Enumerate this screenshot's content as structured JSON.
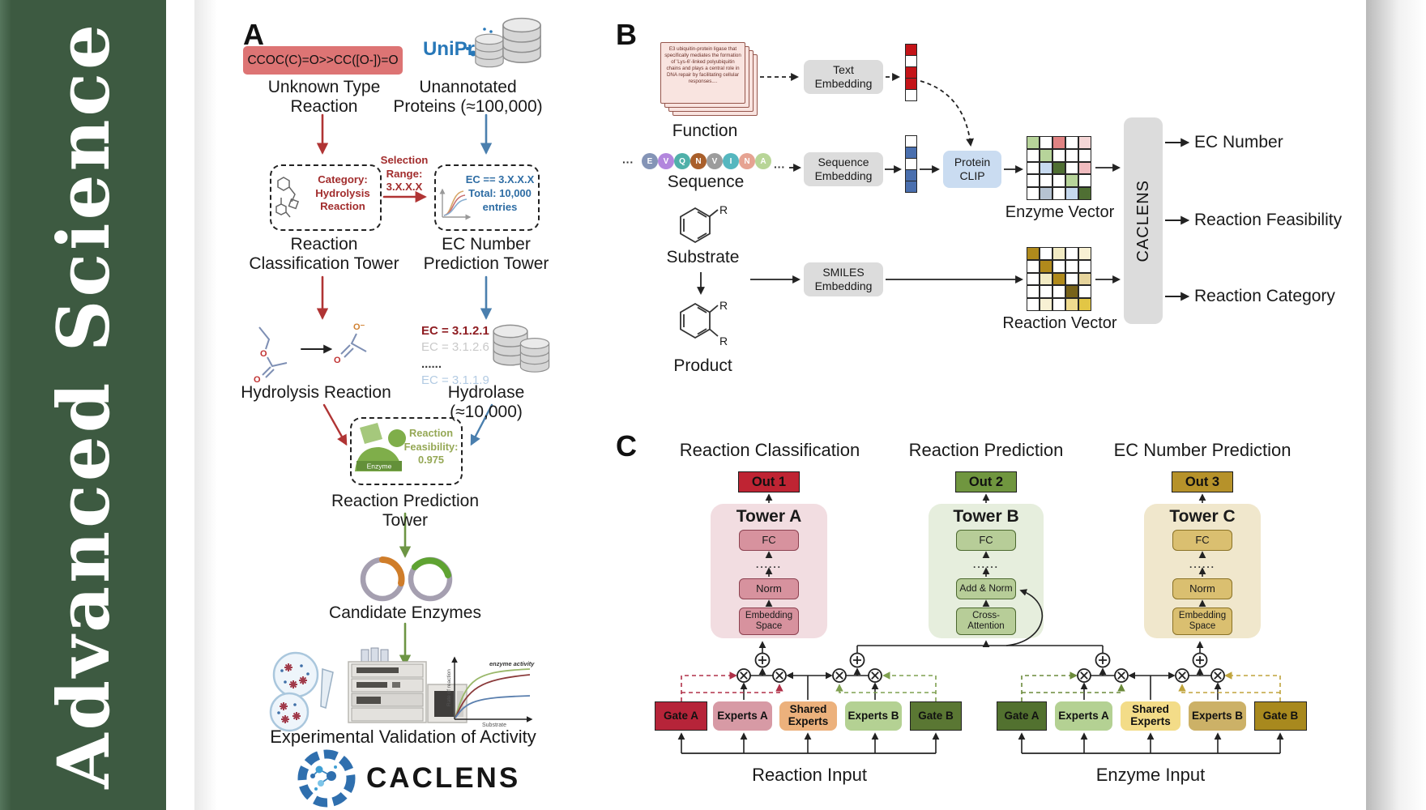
{
  "sidebar": {
    "journal": "Advanced Science"
  },
  "panelA": {
    "label": "A",
    "smiles": "CCOC(C)=O>>CC([O-])=O",
    "unknown_reaction": "Unknown Type Reaction",
    "uniprot": "UniProt",
    "unannotated": "Unannotated Proteins (≈100,000)",
    "category_box": "Category: Hydrolysis Reaction",
    "selection": "Selection Range: 3.X.X.X",
    "ec_box": {
      "line1": "EC == 3.X.X.X",
      "line2": "Total: 10,000",
      "line3": "entries"
    },
    "tower_classification": "Reaction Classification Tower",
    "tower_ec": "EC Number Prediction Tower",
    "ec_list": [
      {
        "text": "EC = 3.1.2.1",
        "color": "#8f1d22",
        "weight": "bold"
      },
      {
        "text": "EC = 3.1.2.6",
        "color": "#c9c9c9",
        "weight": "normal"
      },
      {
        "text": "......",
        "color": "#3a3a3a",
        "weight": "bold"
      },
      {
        "text": "EC = 3.1.1.9",
        "color": "#b3cbe3",
        "weight": "normal"
      }
    ],
    "hydrolysis": "Hydrolysis Reaction",
    "hydrolase": "Hydrolase (≈10,000)",
    "enzyme_icon_label": "Enzyme",
    "feasibility": "Reaction Feasibility: 0.975",
    "tower_prediction": "Reaction Prediction Tower",
    "candidate": "Candidate Enzymes",
    "molecule": {
      "o": "O",
      "o_minus": "O⁻"
    },
    "activity_plot": {
      "annotation": "enzyme activity",
      "ylabel": "Rate of reaction",
      "xlabel": "Substrate"
    },
    "validation": "Experimental Validation of Activity",
    "brand": "CACLENS"
  },
  "panelB": {
    "label": "B",
    "function_card": "E3 ubiquitin-protein ligase that specifically mediates the formation of 'Lys-6'-linked polyubiquitin chains and plays a central role in DNA repair by facilitating cellular responses....",
    "function": "Function",
    "sequence_residues": [
      {
        "letter": "E",
        "color": "#8494b6"
      },
      {
        "letter": "V",
        "color": "#b286dd"
      },
      {
        "letter": "Q",
        "color": "#4fb0a9"
      },
      {
        "letter": "N",
        "color": "#a95f2b"
      },
      {
        "letter": "V",
        "color": "#9c9c9c"
      },
      {
        "letter": "I",
        "color": "#55b7bf"
      },
      {
        "letter": "N",
        "color": "#e6a392"
      },
      {
        "letter": "A",
        "color": "#b8d597"
      }
    ],
    "ellipsis": "···",
    "sequence": "Sequence",
    "substrate": "Substrate",
    "product": "Product",
    "r_group": "R",
    "boxes": {
      "text_embedding": "Text Embedding",
      "sequence_embedding": "Sequence Embedding",
      "smiles_embedding": "SMILES Embedding",
      "protein_clip": "Protein CLIP"
    },
    "text_vector": [
      "#c41418",
      "#ffffff",
      "#c41418",
      "#c41418",
      "#ffffff"
    ],
    "sequence_vector": [
      "#ffffff",
      "#4a6fae",
      "#ffffff",
      "#4a6fae",
      "#4a6fae"
    ],
    "enzyme_vector_label": "Enzyme Vector",
    "reaction_vector_label": "Reaction Vector",
    "enzyme_vector_cells": [
      [
        "#b7d49a",
        "#ffffff",
        "#e08383",
        "#ffffff",
        "#f5d6d6"
      ],
      [
        "#ffffff",
        "#b7d49a",
        "#ffffff",
        "#ffffff",
        "#ffffff"
      ],
      [
        "#ffffff",
        "#c6d9ef",
        "#4f6f33",
        "#ffffff",
        "#f0bcbf"
      ],
      [
        "#ffffff",
        "#ffffff",
        "#ffffff",
        "#b7d49a",
        "#ffffff"
      ],
      [
        "#ffffff",
        "#b6c3d2",
        "#ffffff",
        "#c6d9ef",
        "#4f6f33"
      ]
    ],
    "reaction_vector_cells": [
      [
        "#b08a1c",
        "#ffffff",
        "#f2ebc4",
        "#ffffff",
        "#f8f1d4"
      ],
      [
        "#ffffff",
        "#b08a1c",
        "#ffffff",
        "#ffffff",
        "#ffffff"
      ],
      [
        "#ffffff",
        "#f2ebc4",
        "#b08a1c",
        "#ffffff",
        "#e6d49c"
      ],
      [
        "#ffffff",
        "#ffffff",
        "#ffffff",
        "#77621a",
        "#ffffff"
      ],
      [
        "#ffffff",
        "#f8f1d4",
        "#ffffff",
        "#efdb90",
        "#e2c645"
      ]
    ],
    "caclens": "CACLENS",
    "outputs": [
      "EC Number",
      "Reaction Feasibility",
      "Reaction Category"
    ]
  },
  "panelC": {
    "label": "C",
    "columns": [
      {
        "title": "Reaction Classification",
        "out": "Out 1",
        "tower": "Tower A",
        "layers": {
          "fc": "FC",
          "dots": "......",
          "mid": "Norm",
          "bottom": "Embedding Space"
        }
      },
      {
        "title": "Reaction Prediction",
        "out": "Out 2",
        "tower": "Tower B",
        "layers": {
          "fc": "FC",
          "dots": "......",
          "mid": "Add & Norm",
          "bottom": "Cross-Attention"
        }
      },
      {
        "title": "EC Number Prediction",
        "out": "Out 3",
        "tower": "Tower C",
        "layers": {
          "fc": "FC",
          "dots": "......",
          "mid": "Norm",
          "bottom": "Embedding Space"
        }
      }
    ],
    "groups": [
      {
        "gate_a": "Gate A",
        "experts_a": "Experts A",
        "shared": "Shared Experts",
        "experts_b": "Experts B",
        "gate_b": "Gate B",
        "input": "Reaction Input"
      },
      {
        "gate_a": "Gate A",
        "experts_a": "Experts A",
        "shared": "Shared Experts",
        "experts_b": "Experts B",
        "gate_b": "Gate B",
        "input": "Enzyme Input"
      }
    ]
  },
  "colors": {
    "sidebar_green": "#3d5a41",
    "smiles_box": "#dd7474",
    "dark_red_text": "#a22d2d",
    "blue_text": "#2e6da4",
    "olive_text": "#95a855",
    "gray_box": "#dcdcdc",
    "clip_blue": "#cadcf1",
    "card_bg": "#f9e4e0",
    "card_border": "#96564c",
    "card_text": "#6b3028",
    "out1": "#bf2433",
    "towerA_bg": "#f2dde1",
    "towerA_box": "#d7929e",
    "towerA_border": "#8c4150",
    "out2": "#70963f",
    "towerB_bg": "#e6eedd",
    "towerB_box": "#b7cd98",
    "towerB_border": "#4c682f",
    "out3": "#b6922a",
    "towerC_bg": "#f0e7cc",
    "towerC_box": "#dabf70",
    "towerC_border": "#8a7226",
    "gateA_left": "#b62439",
    "expertsA_left": "#d79aa5",
    "shared_left": "#ecb17c",
    "expertsB_left": "#b4d193",
    "gateB_left": "#5a7733",
    "gateA_right": "#52712f",
    "expertsA_right": "#b4d193",
    "shared_right": "#f3dc88",
    "expertsB_right": "#ccb167",
    "gateB_right": "#a8891e"
  }
}
